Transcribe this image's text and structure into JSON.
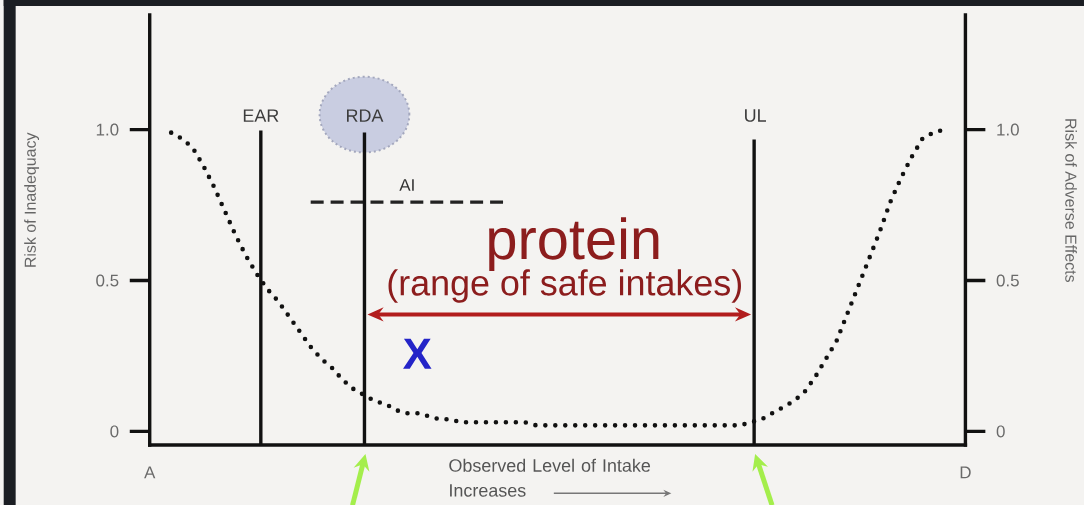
{
  "chart_data": {
    "type": "line",
    "xlabel": "Observed Level of Intake Increases",
    "ylabel": "Risk of Inadequacy",
    "y2label": "Risk of Adverse Effects",
    "annotations": [
      "EAR",
      "RDA",
      "UL",
      "protein",
      "(range of safe intakes)",
      "X"
    ],
    "categories": [
      "A",
      null,
      null,
      null,
      null,
      null,
      null,
      null,
      null,
      null,
      null,
      null,
      null,
      null,
      null,
      null,
      null,
      null,
      null,
      null,
      null,
      null,
      null,
      null,
      null,
      null,
      null,
      null,
      null,
      null,
      null,
      null,
      null,
      null,
      null,
      null,
      null,
      null,
      null,
      null,
      null,
      null,
      null,
      null,
      null,
      null,
      null,
      null,
      null,
      null,
      null,
      null,
      null,
      null,
      null,
      null,
      null,
      null,
      null,
      null,
      null,
      null,
      null,
      null,
      null,
      null,
      null,
      null,
      null,
      null,
      null,
      null,
      null,
      null,
      null,
      null,
      "D"
    ],
    "series": [
      {
        "color": "#111111",
        "line_style": "dotted",
        "values": [
          null,
          null,
          0.99,
          0.97,
          0.94,
          0.88,
          0.81,
          0.73,
          0.65,
          0.58,
          0.52,
          0.47,
          0.43,
          0.38,
          0.33,
          0.28,
          0.24,
          0.21,
          0.17,
          0.14,
          0.12,
          0.1,
          0.09,
          0.07,
          0.06,
          0.06,
          0.05,
          0.04,
          0.04,
          0.03,
          0.03,
          0.03,
          0.03,
          0.03,
          0.03,
          0.03,
          0.02,
          0.02,
          0.02,
          0.02,
          0.02,
          0.02,
          0.02,
          0.02,
          0.02,
          0.02,
          0.02,
          0.02,
          0.02,
          0.02,
          0.02,
          0.02,
          0.02,
          0.02,
          0.02,
          0.02,
          0.03,
          0.04,
          0.06,
          0.08,
          0.1,
          0.13,
          0.18,
          0.24,
          0.3,
          0.39,
          0.48,
          0.57,
          0.66,
          0.76,
          0.84,
          0.91,
          0.97,
          0.99,
          1.0,
          null,
          null
        ]
      },
      {
        "name": "AI",
        "color": "#222222",
        "line_style": "dashed",
        "values": [
          null,
          null,
          null,
          null,
          null,
          null,
          null,
          null,
          null,
          null,
          null,
          null,
          null,
          null,
          null,
          0.76,
          0.76,
          0.76,
          0.76,
          0.76,
          0.76,
          0.76,
          0.76,
          0.76,
          0.76,
          0.76,
          0.76,
          0.76,
          0.76,
          0.76,
          0.76,
          0.76,
          0.76,
          0.76,
          null,
          null,
          null,
          null,
          null,
          null,
          null,
          null,
          null,
          null,
          null,
          null,
          null,
          null,
          null,
          null,
          null,
          null,
          null,
          null,
          null,
          null,
          null,
          null,
          null,
          null,
          null,
          null,
          null,
          null,
          null,
          null,
          null,
          null,
          null,
          null,
          null,
          null,
          null,
          null,
          null,
          null,
          null
        ]
      }
    ],
    "ylim": [
      -0.045,
      1.38
    ],
    "yticks": [
      0,
      0.5,
      {
        "value": 1,
        "label": "1.0"
      }
    ],
    "y2lim": [
      -0.045,
      1.38
    ],
    "y2ticks": [
      0,
      0.5,
      {
        "value": 1,
        "label": "1.0"
      }
    ]
  }
}
